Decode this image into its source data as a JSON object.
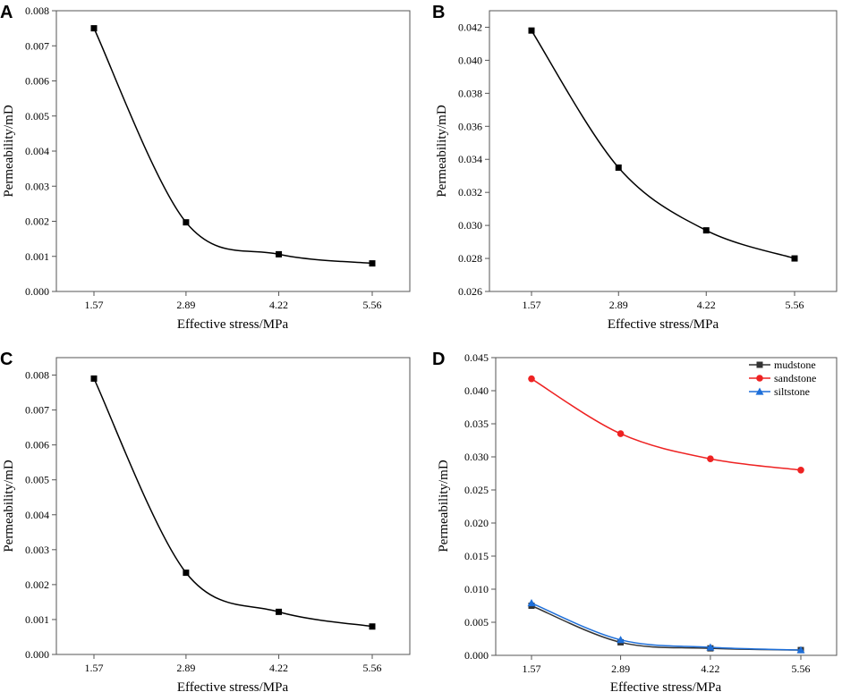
{
  "figure": {
    "panels": [
      "A",
      "B",
      "C",
      "D"
    ]
  },
  "chart_data": [
    {
      "id": "A",
      "type": "line",
      "title": "",
      "xlabel": "Effective stress/MPa",
      "ylabel": "Permeability/mD",
      "categories": [
        "1.57",
        "2.89",
        "4.22",
        "5.56"
      ],
      "x": [
        1.57,
        2.89,
        4.22,
        5.56
      ],
      "ylim": [
        0,
        0.008
      ],
      "yticks": [
        "0.000",
        "0.001",
        "0.002",
        "0.003",
        "0.004",
        "0.005",
        "0.006",
        "0.007",
        "0.008"
      ],
      "series": [
        {
          "name": "mudstone",
          "values": [
            0.0075,
            0.00197,
            0.00106,
            0.0008
          ],
          "color": "#000000",
          "marker": "square"
        }
      ]
    },
    {
      "id": "B",
      "type": "line",
      "title": "",
      "xlabel": "Effective stress/MPa",
      "ylabel": "Permeability/mD",
      "categories": [
        "1.57",
        "2.89",
        "4.22",
        "5.56"
      ],
      "x": [
        1.57,
        2.89,
        4.22,
        5.56
      ],
      "ylim": [
        0.026,
        0.043
      ],
      "yticks": [
        "0.026",
        "0.028",
        "0.030",
        "0.032",
        "0.034",
        "0.036",
        "0.038",
        "0.040",
        "0.042"
      ],
      "series": [
        {
          "name": "sandstone",
          "values": [
            0.0418,
            0.0335,
            0.0297,
            0.028
          ],
          "color": "#000000",
          "marker": "square"
        }
      ]
    },
    {
      "id": "C",
      "type": "line",
      "title": "",
      "xlabel": "Effective stress/MPa",
      "ylabel": "Permeability/mD",
      "categories": [
        "1.57",
        "2.89",
        "4.22",
        "5.56"
      ],
      "x": [
        1.57,
        2.89,
        4.22,
        5.56
      ],
      "ylim": [
        0,
        0.0085
      ],
      "yticks": [
        "0.000",
        "0.001",
        "0.002",
        "0.003",
        "0.004",
        "0.005",
        "0.006",
        "0.007",
        "0.008"
      ],
      "series": [
        {
          "name": "siltstone",
          "values": [
            0.0079,
            0.00234,
            0.00122,
            0.0008
          ],
          "color": "#000000",
          "marker": "square"
        }
      ]
    },
    {
      "id": "D",
      "type": "line",
      "title": "",
      "xlabel": "Effective stress/MPa",
      "ylabel": "Permeability/mD",
      "categories": [
        "1.57",
        "2.89",
        "4.22",
        "5.56"
      ],
      "x": [
        1.57,
        2.89,
        4.22,
        5.56
      ],
      "ylim": [
        0,
        0.045
      ],
      "yticks": [
        "0.000",
        "0.005",
        "0.010",
        "0.015",
        "0.020",
        "0.025",
        "0.030",
        "0.035",
        "0.040",
        "0.045"
      ],
      "legend": "top-right",
      "series": [
        {
          "name": "mudstone",
          "values": [
            0.0075,
            0.00197,
            0.00106,
            0.0008
          ],
          "color": "#333333",
          "marker": "square"
        },
        {
          "name": "sandstone",
          "values": [
            0.0418,
            0.0335,
            0.0297,
            0.028
          ],
          "color": "#ee2222",
          "marker": "circle"
        },
        {
          "name": "siltstone",
          "values": [
            0.0079,
            0.00234,
            0.00122,
            0.0008
          ],
          "color": "#1e6fd9",
          "marker": "triangle"
        }
      ]
    }
  ]
}
